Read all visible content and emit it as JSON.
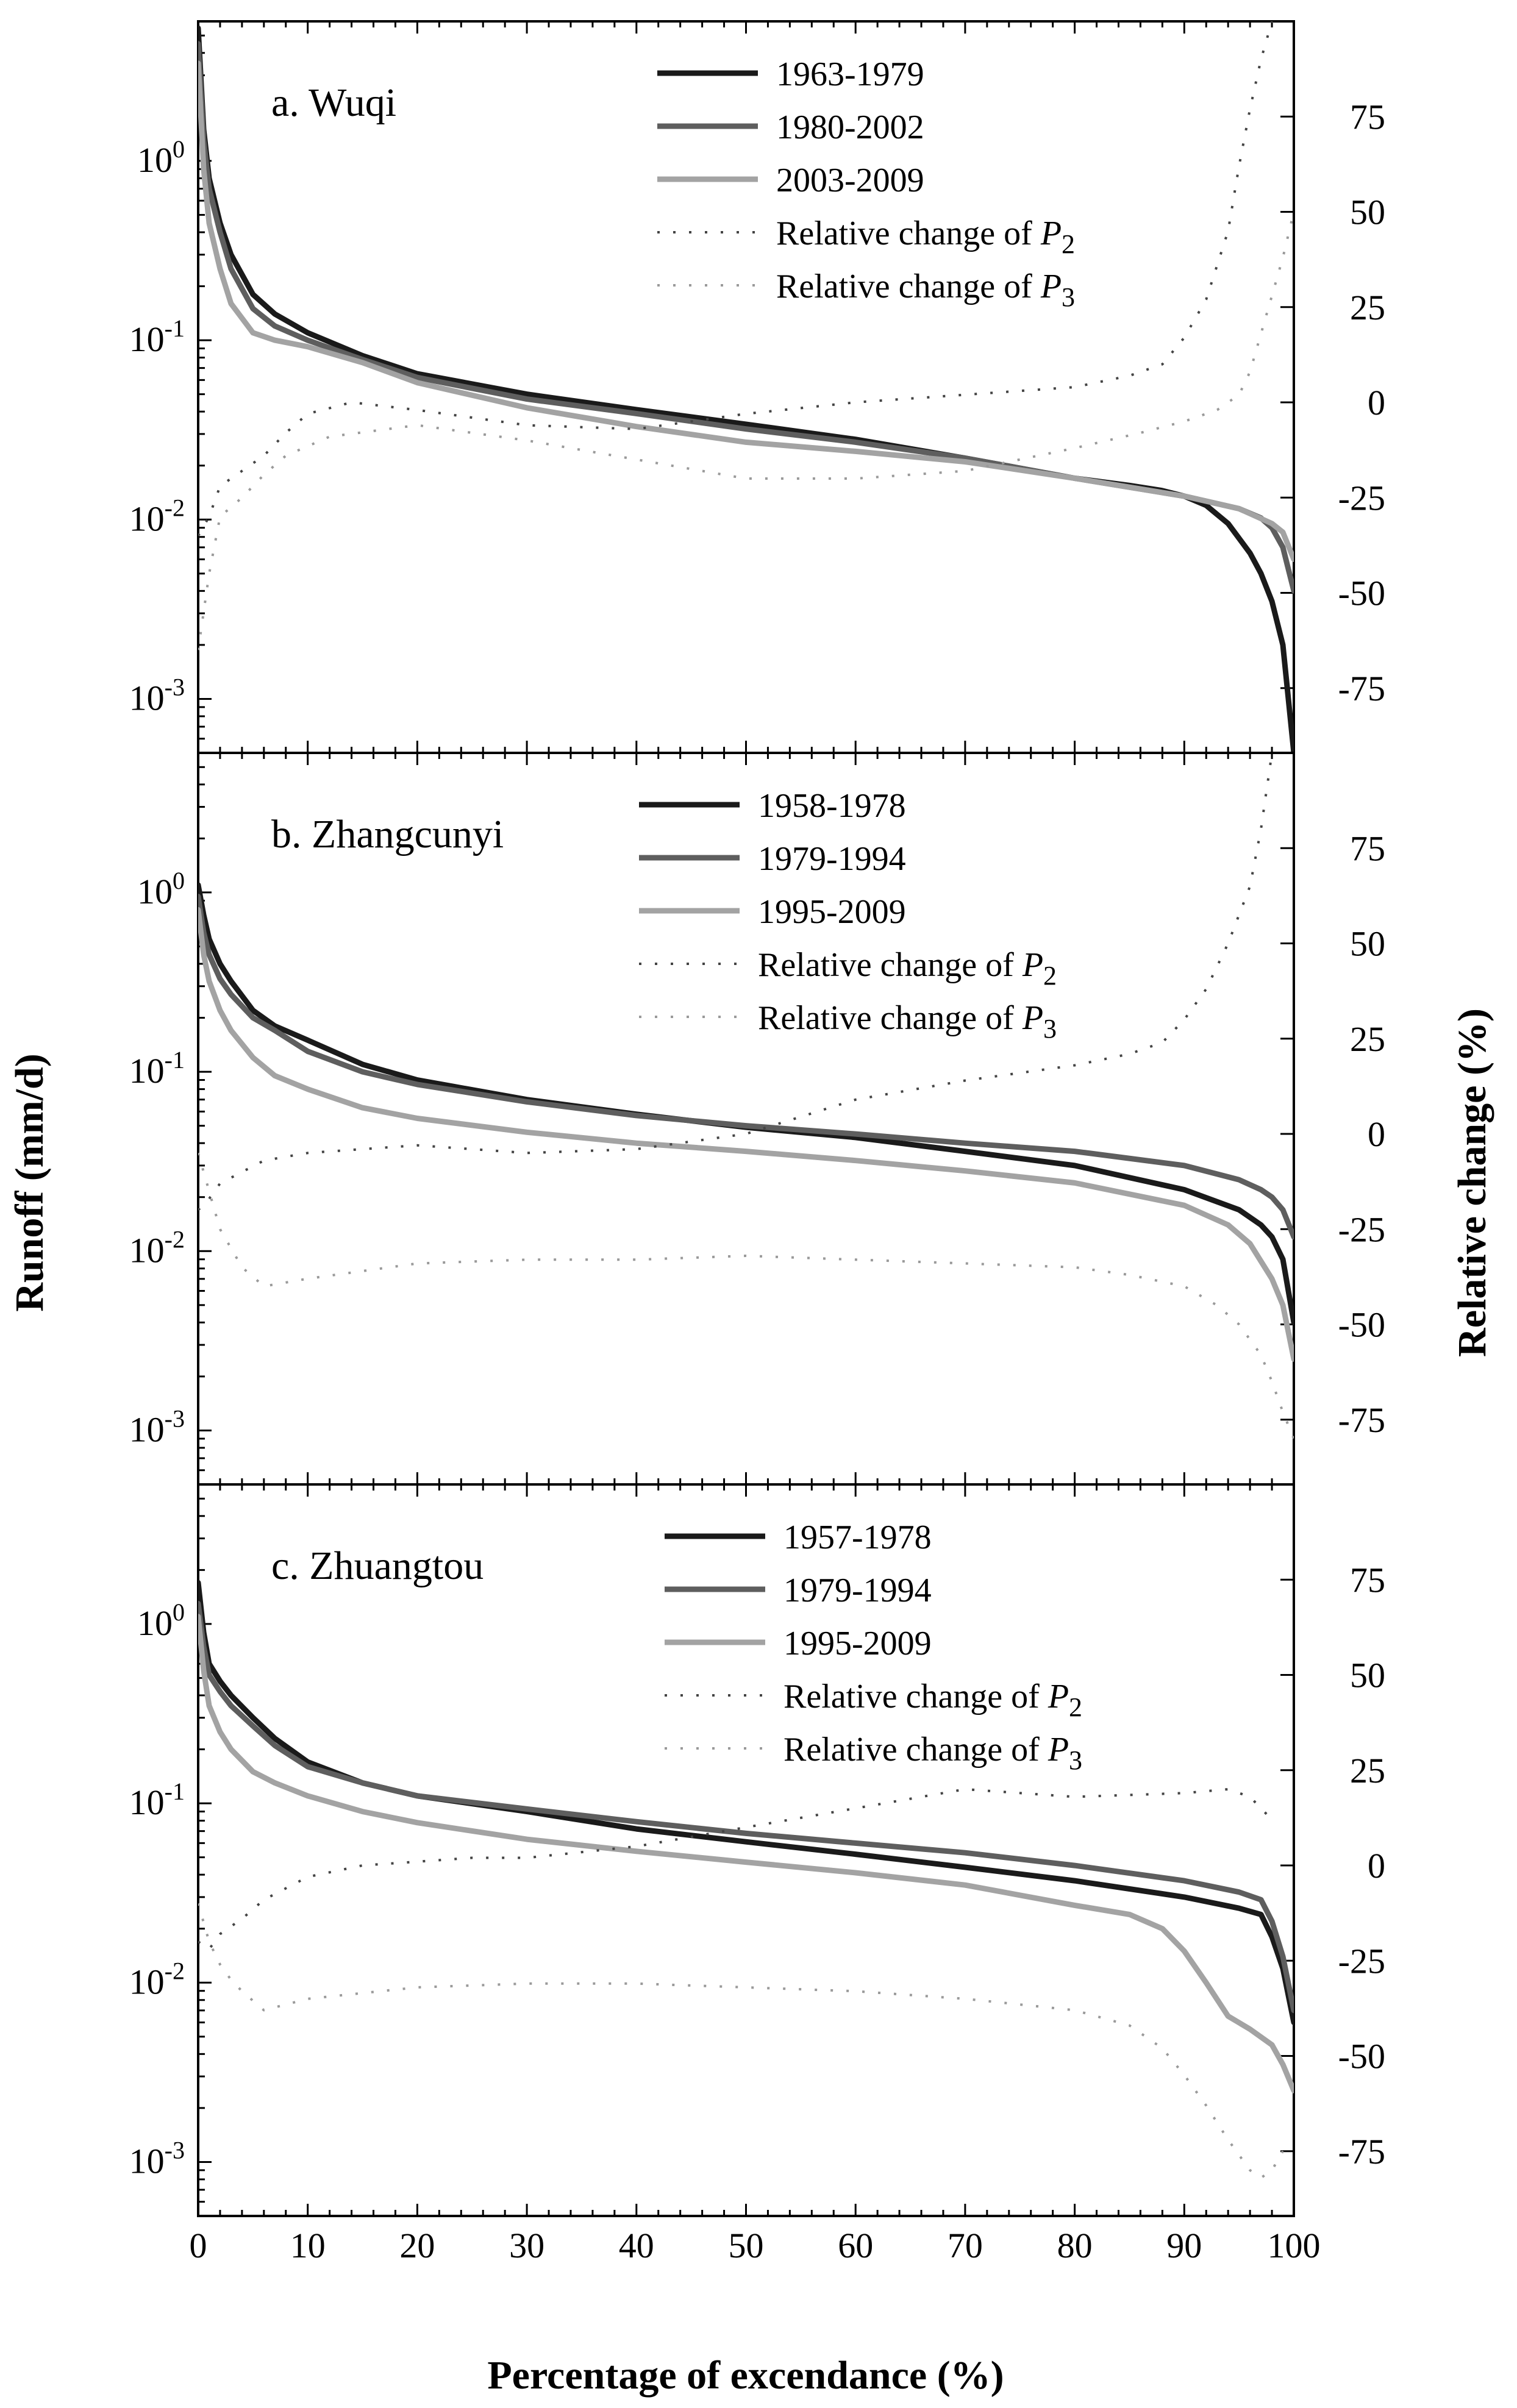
{
  "figure": {
    "y_left_label": "Runoff (mm/d)",
    "y_right_label": "Relative change (%)",
    "x_label": "Percentage of excendance (%)"
  },
  "chart_data": [
    {
      "type": "line",
      "title": "a. Wuqi",
      "xlabel": "Percentage of excendance (%)",
      "ylabel": "Runoff (mm/d)",
      "y2label": "Relative change (%)",
      "xlim": [
        0,
        100
      ],
      "ylim_log": [
        0.0005,
        6
      ],
      "y2lim": [
        -92,
        100
      ],
      "x_ticks": [
        0,
        10,
        20,
        30,
        40,
        50,
        60,
        70,
        80,
        90,
        100
      ],
      "y_ticks": [
        {
          "value": 1,
          "base": "10",
          "exp": "0"
        },
        {
          "value": 0.1,
          "base": "10",
          "exp": "-1"
        },
        {
          "value": 0.01,
          "base": "10",
          "exp": "-2"
        },
        {
          "value": 0.001,
          "base": "10",
          "exp": "-3"
        }
      ],
      "y2_ticks": [
        "75",
        "50",
        "25",
        "0",
        "-25",
        "-50",
        "-75"
      ],
      "legend": [
        "1963-1979",
        "1980-2002",
        "2003-2009",
        "Relative change of P2",
        "Relative change of P3"
      ],
      "legend_math": {
        "prefix": "Relative change of ",
        "var": "P"
      },
      "series": [
        {
          "name": "1963-1979",
          "axis": "left",
          "style": "solid",
          "color": "#1a1a1a",
          "x": [
            0,
            0.5,
            1,
            2,
            3,
            5,
            7,
            10,
            15,
            20,
            30,
            40,
            50,
            60,
            70,
            80,
            85,
            88,
            90,
            92,
            94,
            96,
            97,
            98,
            99,
            100
          ],
          "values": [
            5.5,
            1.5,
            0.8,
            0.45,
            0.3,
            0.18,
            0.14,
            0.11,
            0.082,
            0.065,
            0.05,
            0.041,
            0.034,
            0.028,
            0.022,
            0.017,
            0.0155,
            0.0145,
            0.0135,
            0.012,
            0.0095,
            0.0065,
            0.005,
            0.0035,
            0.002,
            0.0005
          ]
        },
        {
          "name": "1980-2002",
          "axis": "left",
          "style": "solid",
          "color": "#5e5e5e",
          "x": [
            0,
            0.5,
            1,
            2,
            3,
            5,
            7,
            10,
            15,
            20,
            30,
            40,
            50,
            60,
            70,
            80,
            90,
            95,
            97,
            98,
            99,
            100
          ],
          "values": [
            4.5,
            1.3,
            0.7,
            0.4,
            0.25,
            0.15,
            0.12,
            0.1,
            0.078,
            0.062,
            0.047,
            0.039,
            0.032,
            0.027,
            0.022,
            0.017,
            0.0135,
            0.0115,
            0.0102,
            0.009,
            0.007,
            0.004
          ]
        },
        {
          "name": "2003-2009",
          "axis": "left",
          "style": "solid",
          "color": "#a3a3a3",
          "x": [
            0,
            0.5,
            1,
            2,
            3,
            5,
            7,
            10,
            15,
            20,
            30,
            40,
            50,
            60,
            70,
            80,
            90,
            95,
            98,
            99,
            100
          ],
          "values": [
            3.5,
            0.9,
            0.45,
            0.25,
            0.16,
            0.11,
            0.1,
            0.092,
            0.075,
            0.058,
            0.042,
            0.033,
            0.027,
            0.024,
            0.021,
            0.017,
            0.0135,
            0.0115,
            0.0095,
            0.0085,
            0.006
          ]
        },
        {
          "name": "Relative change of P2",
          "axis": "right",
          "style": "dotted",
          "color": "#444444",
          "x": [
            0,
            1,
            2,
            4,
            6,
            8,
            10,
            14,
            20,
            30,
            40,
            50,
            60,
            70,
            80,
            85,
            88,
            90,
            92,
            94,
            95,
            96,
            97,
            98
          ],
          "values": [
            -35,
            -30,
            -22,
            -18,
            -14,
            -8,
            -3,
            0,
            -2,
            -6,
            -7,
            -3,
            0,
            2,
            4,
            7,
            10,
            17,
            27,
            45,
            62,
            77,
            90,
            100
          ]
        },
        {
          "name": "Relative change of P3",
          "axis": "right",
          "style": "dotted",
          "color": "#9a9a9a",
          "x": [
            0,
            1,
            2,
            4,
            6,
            8,
            12,
            20,
            30,
            40,
            50,
            60,
            70,
            80,
            86,
            90,
            93,
            95,
            96,
            97,
            98,
            99,
            100
          ],
          "values": [
            -65,
            -45,
            -30,
            -25,
            -19,
            -14,
            -9,
            -6,
            -10,
            -15,
            -20,
            -20,
            -18,
            -12,
            -8,
            -5,
            -2,
            2,
            8,
            18,
            28,
            38,
            50
          ]
        }
      ]
    },
    {
      "type": "line",
      "title": "b. Zhangcunyi",
      "xlabel": "Percentage of excendance (%)",
      "ylabel": "Runoff (mm/d)",
      "y2label": "Relative change (%)",
      "xlim": [
        0,
        100
      ],
      "ylim_log": [
        0.0005,
        6
      ],
      "y2lim": [
        -92,
        100
      ],
      "x_ticks": [
        0,
        10,
        20,
        30,
        40,
        50,
        60,
        70,
        80,
        90,
        100
      ],
      "y_ticks": [
        {
          "value": 1,
          "base": "10",
          "exp": "0"
        },
        {
          "value": 0.1,
          "base": "10",
          "exp": "-1"
        },
        {
          "value": 0.01,
          "base": "10",
          "exp": "-2"
        },
        {
          "value": 0.001,
          "base": "10",
          "exp": "-3"
        }
      ],
      "y2_ticks": [
        "75",
        "50",
        "25",
        "0",
        "-25",
        "-50",
        "-75"
      ],
      "legend": [
        "1958-1978",
        "1979-1994",
        "1995-2009",
        "Relative change of P2",
        "Relative change of P3"
      ],
      "legend_math": {
        "prefix": "Relative change of ",
        "var": "P"
      },
      "series": [
        {
          "name": "1958-1978",
          "axis": "left",
          "style": "solid",
          "color": "#1a1a1a",
          "x": [
            0,
            0.5,
            1,
            2,
            3,
            5,
            7,
            10,
            15,
            20,
            30,
            40,
            50,
            60,
            70,
            80,
            90,
            95,
            97,
            98,
            99,
            100
          ],
          "values": [
            1.1,
            0.75,
            0.55,
            0.4,
            0.32,
            0.22,
            0.18,
            0.15,
            0.11,
            0.09,
            0.07,
            0.058,
            0.049,
            0.043,
            0.036,
            0.03,
            0.022,
            0.017,
            0.014,
            0.012,
            0.009,
            0.004
          ]
        },
        {
          "name": "1979-1994",
          "axis": "left",
          "style": "solid",
          "color": "#5e5e5e",
          "x": [
            0,
            0.5,
            1,
            2,
            3,
            5,
            7,
            10,
            15,
            20,
            30,
            40,
            50,
            60,
            70,
            80,
            90,
            95,
            97,
            98,
            99,
            100
          ],
          "values": [
            0.95,
            0.6,
            0.45,
            0.33,
            0.27,
            0.2,
            0.17,
            0.13,
            0.1,
            0.085,
            0.068,
            0.057,
            0.05,
            0.045,
            0.04,
            0.036,
            0.03,
            0.025,
            0.022,
            0.02,
            0.017,
            0.012
          ]
        },
        {
          "name": "1995-2009",
          "axis": "left",
          "style": "solid",
          "color": "#a3a3a3",
          "x": [
            0,
            0.5,
            1,
            2,
            3,
            5,
            7,
            10,
            15,
            20,
            30,
            40,
            50,
            60,
            70,
            80,
            90,
            94,
            96,
            98,
            99,
            100
          ],
          "values": [
            0.8,
            0.45,
            0.32,
            0.22,
            0.17,
            0.12,
            0.095,
            0.08,
            0.063,
            0.055,
            0.046,
            0.04,
            0.036,
            0.032,
            0.028,
            0.024,
            0.018,
            0.014,
            0.011,
            0.007,
            0.005,
            0.0025
          ]
        },
        {
          "name": "Relative change of P2",
          "axis": "right",
          "style": "dotted",
          "color": "#444444",
          "x": [
            0,
            1,
            2,
            4,
            6,
            8,
            10,
            15,
            20,
            25,
            30,
            40,
            50,
            60,
            70,
            80,
            85,
            88,
            90,
            92,
            94,
            96,
            97,
            98
          ],
          "values": [
            -20,
            -17,
            -13,
            -10,
            -7,
            -6,
            -5,
            -4,
            -3,
            -4,
            -5,
            -4,
            0,
            9,
            14,
            18,
            21,
            24,
            30,
            38,
            50,
            65,
            80,
            100
          ]
        },
        {
          "name": "Relative change of P3",
          "axis": "right",
          "style": "dotted",
          "color": "#9a9a9a",
          "x": [
            0,
            1,
            2,
            3,
            4,
            6,
            10,
            20,
            30,
            40,
            50,
            60,
            70,
            80,
            85,
            90,
            93,
            95,
            97,
            98,
            99,
            100
          ],
          "values": [
            -5,
            -15,
            -25,
            -30,
            -35,
            -40,
            -38,
            -34,
            -33,
            -33,
            -32,
            -33,
            -34,
            -35,
            -37,
            -40,
            -45,
            -50,
            -58,
            -65,
            -73,
            -80
          ]
        }
      ]
    },
    {
      "type": "line",
      "title": "c. Zhuangtou",
      "xlabel": "Percentage of excendance (%)",
      "ylabel": "Runoff (mm/d)",
      "y2label": "Relative change (%)",
      "xlim": [
        0,
        100
      ],
      "ylim_log": [
        0.0005,
        6
      ],
      "y2lim": [
        -92,
        100
      ],
      "x_ticks": [
        0,
        10,
        20,
        30,
        40,
        50,
        60,
        70,
        80,
        90,
        100
      ],
      "y_ticks": [
        {
          "value": 1,
          "base": "10",
          "exp": "0"
        },
        {
          "value": 0.1,
          "base": "10",
          "exp": "-1"
        },
        {
          "value": 0.01,
          "base": "10",
          "exp": "-2"
        },
        {
          "value": 0.001,
          "base": "10",
          "exp": "-3"
        }
      ],
      "y2_ticks": [
        "75",
        "50",
        "25",
        "0",
        "-25",
        "-50",
        "-75"
      ],
      "legend": [
        "1957-1978",
        "1979-1994",
        "1995-2009",
        "Relative change of P2",
        "Relative change of P3"
      ],
      "legend_math": {
        "prefix": "Relative change of ",
        "var": "P"
      },
      "series": [
        {
          "name": "1957-1978",
          "axis": "left",
          "style": "solid",
          "color": "#1a1a1a",
          "x": [
            0,
            0.5,
            1,
            2,
            3,
            5,
            7,
            10,
            15,
            20,
            30,
            40,
            50,
            60,
            70,
            80,
            90,
            95,
            97,
            98,
            99,
            100
          ],
          "values": [
            1.7,
            0.9,
            0.6,
            0.48,
            0.4,
            0.3,
            0.23,
            0.17,
            0.13,
            0.11,
            0.09,
            0.072,
            0.061,
            0.052,
            0.044,
            0.037,
            0.03,
            0.026,
            0.024,
            0.018,
            0.012,
            0.006
          ]
        },
        {
          "name": "1979-1994",
          "axis": "left",
          "style": "solid",
          "color": "#5e5e5e",
          "x": [
            0,
            0.5,
            1,
            2,
            3,
            5,
            7,
            10,
            15,
            20,
            30,
            40,
            50,
            60,
            70,
            80,
            90,
            95,
            97,
            98,
            99,
            100
          ],
          "values": [
            1.3,
            0.75,
            0.52,
            0.42,
            0.35,
            0.27,
            0.21,
            0.16,
            0.13,
            0.11,
            0.093,
            0.079,
            0.068,
            0.06,
            0.053,
            0.045,
            0.037,
            0.032,
            0.029,
            0.022,
            0.014,
            0.007
          ]
        },
        {
          "name": "1995-2009",
          "axis": "left",
          "style": "solid",
          "color": "#a3a3a3",
          "x": [
            0,
            0.5,
            1,
            2,
            3,
            5,
            7,
            10,
            15,
            20,
            30,
            40,
            50,
            60,
            70,
            80,
            85,
            88,
            90,
            92,
            94,
            96,
            98,
            99,
            100
          ],
          "values": [
            1.1,
            0.55,
            0.35,
            0.25,
            0.2,
            0.15,
            0.13,
            0.11,
            0.09,
            0.078,
            0.063,
            0.054,
            0.047,
            0.041,
            0.035,
            0.027,
            0.024,
            0.02,
            0.015,
            0.01,
            0.0065,
            0.0055,
            0.0045,
            0.0035,
            0.0025
          ]
        },
        {
          "name": "Relative change of P2",
          "axis": "right",
          "style": "dotted",
          "color": "#444444",
          "x": [
            0,
            1,
            2,
            4,
            6,
            8,
            10,
            15,
            20,
            25,
            30,
            40,
            50,
            60,
            70,
            80,
            90,
            94,
            96,
            98
          ],
          "values": [
            -20,
            -22,
            -18,
            -14,
            -9,
            -6,
            -3,
            0,
            1,
            2,
            2,
            5,
            10,
            15,
            20,
            18,
            19,
            20,
            18,
            12
          ]
        },
        {
          "name": "Relative change of P3",
          "axis": "right",
          "style": "dotted",
          "color": "#9a9a9a",
          "x": [
            0,
            1,
            2,
            3,
            4,
            6,
            10,
            20,
            30,
            40,
            50,
            60,
            70,
            80,
            85,
            88,
            90,
            92,
            94,
            96,
            97,
            98,
            99
          ],
          "values": [
            -10,
            -20,
            -26,
            -30,
            -33,
            -38,
            -35,
            -32,
            -31,
            -31,
            -32,
            -33,
            -35,
            -38,
            -42,
            -48,
            -55,
            -63,
            -72,
            -80,
            -82,
            -80,
            -75
          ]
        }
      ]
    }
  ]
}
